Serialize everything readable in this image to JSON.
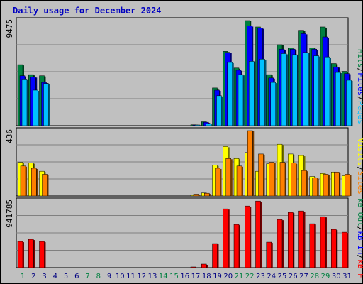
{
  "chart_data": {
    "type": "bar",
    "title": "Daily usage for December 2024",
    "categories": [
      "1",
      "2",
      "3",
      "4",
      "5",
      "6",
      "7",
      "8",
      "9",
      "10",
      "11",
      "12",
      "13",
      "14",
      "15",
      "16",
      "17",
      "18",
      "19",
      "20",
      "21",
      "22",
      "23",
      "24",
      "25",
      "26",
      "27",
      "28",
      "29",
      "30",
      "31"
    ],
    "weekend_days": [
      "1",
      "7",
      "8",
      "14",
      "15",
      "21",
      "22",
      "28",
      "29"
    ],
    "panels": [
      {
        "id": "hits",
        "max_label": "9475",
        "ylim": [
          0,
          9475
        ],
        "series": [
          {
            "name": "Hits",
            "color": "#008040",
            "values": [
              5500,
              4600,
              4500,
              0,
              0,
              0,
              0,
              0,
              0,
              0,
              0,
              0,
              0,
              0,
              0,
              0,
              80,
              350,
              3400,
              6700,
              5200,
              9475,
              8900,
              4600,
              7300,
              7000,
              8600,
              7000,
              8900,
              5600,
              4900
            ]
          },
          {
            "name": "Files",
            "color": "#0000ff",
            "values": [
              4500,
              4400,
              3900,
              0,
              0,
              0,
              0,
              0,
              0,
              0,
              0,
              0,
              0,
              0,
              0,
              0,
              60,
              310,
              3200,
              6600,
              5000,
              9000,
              8800,
              4300,
              6900,
              6900,
              8300,
              6900,
              8000,
              5300,
              4700
            ]
          },
          {
            "name": "Pages",
            "color": "#00c0ff",
            "values": [
              4200,
              3200,
              3800,
              0,
              0,
              0,
              0,
              0,
              0,
              0,
              0,
              0,
              0,
              0,
              0,
              0,
              40,
              180,
              2700,
              5700,
              4600,
              5800,
              6000,
              3900,
              6500,
              6400,
              6600,
              6300,
              6200,
              4800,
              4100
            ]
          }
        ]
      },
      {
        "id": "visits",
        "max_label": "436",
        "ylim": [
          0,
          436
        ],
        "series": [
          {
            "name": "Visits",
            "color": "#ffff00",
            "values": [
              225,
              220,
              165,
              0,
              0,
              0,
              0,
              0,
              0,
              0,
              0,
              0,
              0,
              0,
              0,
              0,
              5,
              20,
              205,
              330,
              250,
              290,
              165,
              215,
              345,
              280,
              270,
              130,
              150,
              160,
              135
            ]
          },
          {
            "name": "Sites",
            "color": "#ff8000",
            "values": [
              200,
              185,
              145,
              0,
              0,
              0,
              0,
              0,
              0,
              0,
              0,
              0,
              0,
              0,
              0,
              0,
              12,
              18,
              185,
              250,
              200,
              436,
              280,
              225,
              225,
              220,
              170,
              120,
              145,
              160,
              145
            ]
          }
        ]
      },
      {
        "id": "kbytes",
        "max_label": "941785",
        "ylim": [
          0,
          941785
        ],
        "series": [
          {
            "name": "KBytes",
            "color": "#ff0000",
            "values": [
              370000,
              400000,
              370000,
              0,
              0,
              0,
              0,
              0,
              0,
              0,
              0,
              0,
              0,
              0,
              0,
              0,
              8000,
              50000,
              340000,
              830000,
              610000,
              870000,
              940000,
              360000,
              680000,
              780000,
              800000,
              620000,
              720000,
              540000,
              500000
            ]
          }
        ]
      }
    ],
    "legend_right": [
      {
        "panel": "hits",
        "items": [
          {
            "text": "Hits",
            "color": "#008040"
          },
          {
            "text": "Files",
            "color": "#0000ff"
          },
          {
            "text": "Pages",
            "color": "#00c0ff"
          }
        ]
      },
      {
        "panel": "visits",
        "items": [
          {
            "text": "Visits",
            "color": "#ffff00"
          },
          {
            "text": "Sites",
            "color": "#ff8000"
          }
        ]
      },
      {
        "panel": "kbytes",
        "items": [
          {
            "text": "kB Out",
            "color": "#008040"
          },
          {
            "text": "kB In",
            "color": "#0000ff"
          },
          {
            "text": "kB F",
            "color": "#ff0000"
          }
        ]
      }
    ],
    "colors": {
      "background": "#c0c0c0",
      "grid": "#808080",
      "weekday_tick": "#000080",
      "weekend_tick": "#008040",
      "title": "#0000c0"
    }
  }
}
